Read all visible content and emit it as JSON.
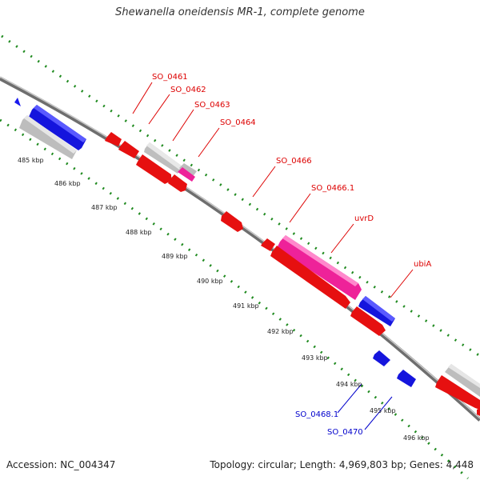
{
  "title": "Shewanella oneidensis MR-1, complete genome",
  "footer": {
    "accession": "Accession: NC_004347",
    "summary": "Topology: circular; Length: 4,969,803 bp; Genes: 4,448"
  },
  "colors": {
    "forward_gene": "#ee0000",
    "reverse_gene": "#0000dd",
    "pseudo_gene": "#c8c8c8",
    "rna_gene": "#ee2299",
    "backbone": "#808080",
    "tick": "#117711",
    "label_red": "#dd0000",
    "label_blue": "#0000cc"
  },
  "ticks": [
    "485 kbp",
    "486 kbp",
    "487 kbp",
    "488 kbp",
    "489 kbp",
    "490 kbp",
    "491 kbp",
    "492 kbp",
    "493 kbp",
    "494 kbp",
    "495 kbp",
    "496 kbp"
  ],
  "gene_labels_top": [
    "SO_0461",
    "SO_0462",
    "SO_0463",
    "SO_0464",
    "SO_0466",
    "SO_0466.1",
    "uvrD",
    "ubiA"
  ],
  "gene_labels_bottom": [
    "SO_0468.1",
    "SO_0470"
  ]
}
